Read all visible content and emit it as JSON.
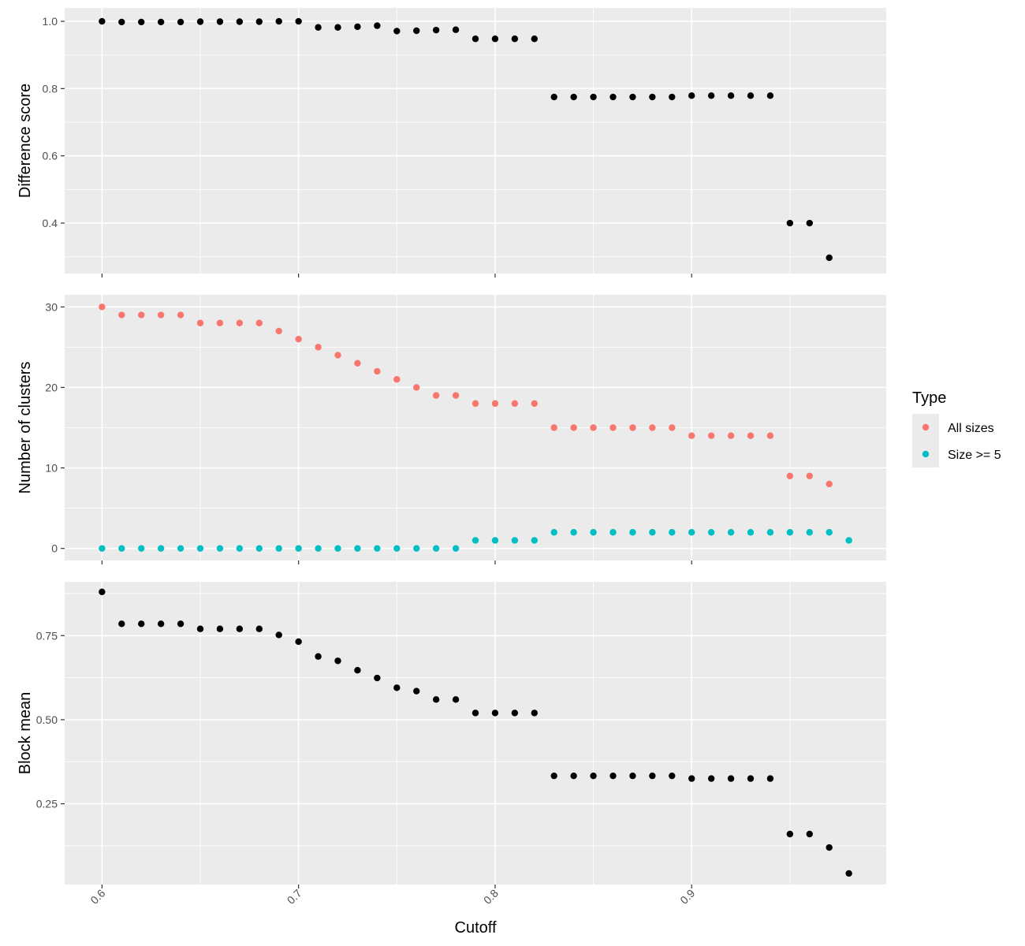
{
  "chart_data": {
    "type": "scatter",
    "xlabel": "Cutoff",
    "xlim": [
      0.581,
      0.999
    ],
    "x_ticks": [
      0.6,
      0.7,
      0.8,
      0.9
    ],
    "x_tick_labels": [
      "0.6",
      "0.7",
      "0.8",
      "0.9"
    ],
    "grid": true,
    "legend": {
      "title": "Type",
      "placement": "right",
      "entries": [
        {
          "label": "All sizes",
          "color": "#F8766D"
        },
        {
          "label": "Size >= 5",
          "color": "#00BFC4"
        }
      ]
    },
    "panels": [
      {
        "ylabel": "Difference score",
        "ylim": [
          0.25,
          1.04
        ],
        "y_ticks": [
          0.4,
          0.6,
          0.8,
          1.0
        ],
        "y_tick_labels": [
          "0.4",
          "0.6",
          "0.8",
          "1.0"
        ],
        "series": [
          {
            "color": "#000000",
            "x": [
              0.6,
              0.61,
              0.62,
              0.63,
              0.64,
              0.65,
              0.66,
              0.67,
              0.68,
              0.69,
              0.7,
              0.71,
              0.72,
              0.73,
              0.74,
              0.75,
              0.76,
              0.77,
              0.78,
              0.79,
              0.8,
              0.81,
              0.82,
              0.83,
              0.84,
              0.85,
              0.86,
              0.87,
              0.88,
              0.89,
              0.9,
              0.91,
              0.92,
              0.93,
              0.94,
              0.95,
              0.96,
              0.97
            ],
            "y": [
              1.0,
              0.998,
              0.998,
              0.998,
              0.998,
              0.999,
              0.999,
              0.999,
              0.999,
              1.0,
              1.0,
              0.982,
              0.982,
              0.984,
              0.987,
              0.971,
              0.972,
              0.974,
              0.975,
              0.948,
              0.948,
              0.948,
              0.948,
              0.775,
              0.775,
              0.775,
              0.775,
              0.775,
              0.775,
              0.775,
              0.779,
              0.779,
              0.779,
              0.779,
              0.779,
              0.4,
              0.4,
              0.297
            ]
          }
        ]
      },
      {
        "ylabel": "Number of clusters",
        "ylim": [
          -1.5,
          31.5
        ],
        "y_ticks": [
          0,
          10,
          20,
          30
        ],
        "y_tick_labels": [
          "0",
          "10",
          "20",
          "30"
        ],
        "series": [
          {
            "name": "All sizes",
            "color": "#F8766D",
            "x": [
              0.6,
              0.61,
              0.62,
              0.63,
              0.64,
              0.65,
              0.66,
              0.67,
              0.68,
              0.69,
              0.7,
              0.71,
              0.72,
              0.73,
              0.74,
              0.75,
              0.76,
              0.77,
              0.78,
              0.79,
              0.8,
              0.81,
              0.82,
              0.83,
              0.84,
              0.85,
              0.86,
              0.87,
              0.88,
              0.89,
              0.9,
              0.91,
              0.92,
              0.93,
              0.94,
              0.95,
              0.96,
              0.97
            ],
            "y": [
              30,
              29,
              29,
              29,
              29,
              28,
              28,
              28,
              28,
              27,
              26,
              25,
              24,
              23,
              22,
              21,
              20,
              19,
              19,
              18,
              18,
              18,
              18,
              15,
              15,
              15,
              15,
              15,
              15,
              15,
              14,
              14,
              14,
              14,
              14,
              9,
              9,
              8
            ]
          },
          {
            "name": "Size >= 5",
            "color": "#00BFC4",
            "x": [
              0.6,
              0.61,
              0.62,
              0.63,
              0.64,
              0.65,
              0.66,
              0.67,
              0.68,
              0.69,
              0.7,
              0.71,
              0.72,
              0.73,
              0.74,
              0.75,
              0.76,
              0.77,
              0.78,
              0.79,
              0.8,
              0.81,
              0.82,
              0.83,
              0.84,
              0.85,
              0.86,
              0.87,
              0.88,
              0.89,
              0.9,
              0.91,
              0.92,
              0.93,
              0.94,
              0.95,
              0.96,
              0.97,
              0.98
            ],
            "y": [
              0,
              0,
              0,
              0,
              0,
              0,
              0,
              0,
              0,
              0,
              0,
              0,
              0,
              0,
              0,
              0,
              0,
              0,
              0,
              1,
              1,
              1,
              1,
              2,
              2,
              2,
              2,
              2,
              2,
              2,
              2,
              2,
              2,
              2,
              2,
              2,
              2,
              2,
              1
            ]
          }
        ]
      },
      {
        "ylabel": "Block mean",
        "ylim": [
          0.01,
          0.91
        ],
        "y_ticks": [
          0.25,
          0.5,
          0.75
        ],
        "y_tick_labels": [
          "0.25",
          "0.50",
          "0.75"
        ],
        "series": [
          {
            "color": "#000000",
            "x": [
              0.6,
              0.61,
              0.62,
              0.63,
              0.64,
              0.65,
              0.66,
              0.67,
              0.68,
              0.69,
              0.7,
              0.71,
              0.72,
              0.73,
              0.74,
              0.75,
              0.76,
              0.77,
              0.78,
              0.79,
              0.8,
              0.81,
              0.82,
              0.83,
              0.84,
              0.85,
              0.86,
              0.87,
              0.88,
              0.89,
              0.9,
              0.91,
              0.92,
              0.93,
              0.94,
              0.95,
              0.96,
              0.97,
              0.98
            ],
            "y": [
              0.88,
              0.785,
              0.785,
              0.785,
              0.785,
              0.77,
              0.77,
              0.77,
              0.77,
              0.752,
              0.732,
              0.688,
              0.675,
              0.647,
              0.624,
              0.595,
              0.585,
              0.56,
              0.56,
              0.52,
              0.52,
              0.52,
              0.52,
              0.333,
              0.333,
              0.333,
              0.333,
              0.333,
              0.333,
              0.333,
              0.325,
              0.325,
              0.325,
              0.325,
              0.325,
              0.16,
              0.16,
              0.12,
              0.043
            ]
          }
        ]
      }
    ]
  }
}
